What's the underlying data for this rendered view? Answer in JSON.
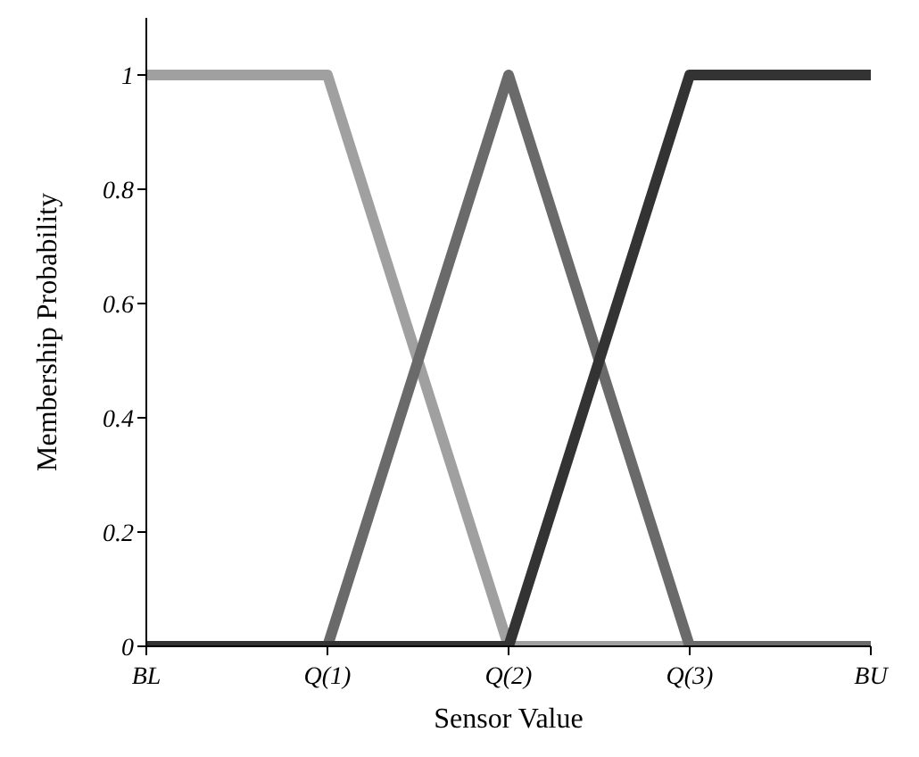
{
  "chart_data": {
    "type": "line",
    "xlabel": "Sensor Value",
    "ylabel": "Membership Probability",
    "categories": [
      "BL",
      "Q(1)",
      "Q(2)",
      "Q(3)",
      "BU"
    ],
    "ylim": [
      0,
      1.1
    ],
    "yticks": [
      0,
      0.2,
      0.4,
      0.6,
      0.8,
      1
    ],
    "grid": false,
    "legend": false,
    "marker": "none",
    "line_style": "solid",
    "series": [
      {
        "color": "#a0a0a0",
        "values": [
          1,
          1,
          0,
          0,
          0
        ]
      },
      {
        "color": "#6a6a6a",
        "values": [
          0,
          0,
          1,
          0,
          0
        ]
      },
      {
        "color": "#333333",
        "values": [
          0,
          0,
          0,
          1,
          1
        ]
      }
    ]
  }
}
